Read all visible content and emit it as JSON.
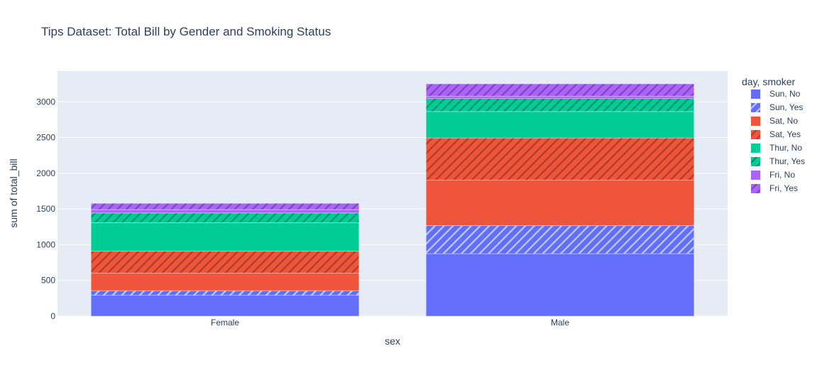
{
  "chart_data": {
    "type": "bar",
    "barmode": "stack",
    "title": "Tips Dataset: Total Bill by Gender and Smoking Status",
    "xlabel": "sex",
    "ylabel": "sum of total_bill",
    "categories": [
      "Female",
      "Male"
    ],
    "ylim": [
      0,
      3430
    ],
    "yticks": [
      0,
      500,
      1000,
      1500,
      2000,
      2500,
      3000
    ],
    "grid": true,
    "legend_title": "day, smoker",
    "legend_position": "right",
    "plot_background": "#e5ecf6",
    "series": [
      {
        "name": "Sun, No",
        "values": [
          291,
          874
        ],
        "color": "#636efa",
        "pattern": "none"
      },
      {
        "name": "Sun, Yes",
        "values": [
          66,
          394
        ],
        "color": "#636efa",
        "pattern": "hatch"
      },
      {
        "name": "Sat, No",
        "values": [
          247,
          637
        ],
        "color": "#ef553b",
        "pattern": "none"
      },
      {
        "name": "Sat, Yes",
        "values": [
          304,
          589
        ],
        "color": "#ef553b",
        "pattern": "hatch"
      },
      {
        "name": "Thur, No",
        "values": [
          400,
          370
        ],
        "color": "#00cc96",
        "pattern": "none"
      },
      {
        "name": "Thur, Yes",
        "values": [
          135,
          181
        ],
        "color": "#00cc96",
        "pattern": "hatch"
      },
      {
        "name": "Fri, No",
        "values": [
          48,
          34
        ],
        "color": "#ab63fa",
        "pattern": "none"
      },
      {
        "name": "Fri, Yes",
        "values": [
          88,
          172
        ],
        "color": "#ab63fa",
        "pattern": "hatch"
      }
    ]
  }
}
